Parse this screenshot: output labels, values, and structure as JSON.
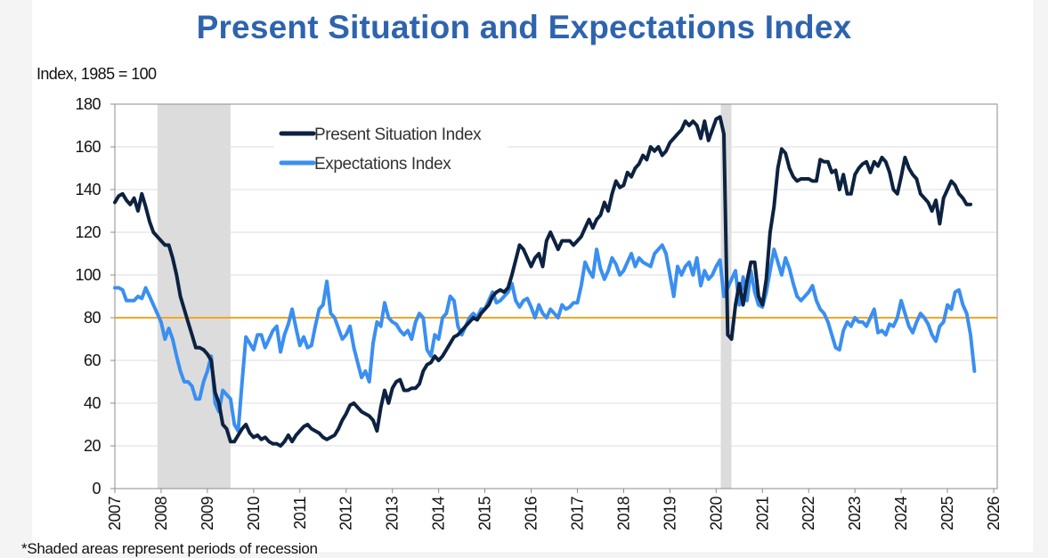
{
  "chart_data": {
    "type": "line",
    "title": "Present Situation and Expectations Index",
    "ylabel": "Index, 1985 = 100",
    "xlabel": "",
    "footnote": "*Shaded areas represent periods of recession",
    "xlim": [
      2007,
      2026
    ],
    "ylim": [
      0,
      180
    ],
    "x_ticks": [
      "2007",
      "2008",
      "2009",
      "2010",
      "2011",
      "2012",
      "2013",
      "2014",
      "2015",
      "2016",
      "2017",
      "2018",
      "2019",
      "2020",
      "2021",
      "2022",
      "2023",
      "2024",
      "2025",
      "2026"
    ],
    "y_ticks": [
      "0",
      "20",
      "40",
      "60",
      "80",
      "100",
      "120",
      "140",
      "160",
      "180"
    ],
    "grid": "horizontal",
    "legend_position": "top-left",
    "start": "2007-01",
    "frequency": "monthly",
    "reference_line": {
      "value": 80,
      "color": "#f5a623"
    },
    "recessions": [
      {
        "start": 2007.92,
        "end": 2009.5
      },
      {
        "start": 2020.1,
        "end": 2020.33
      }
    ],
    "series": [
      {
        "name": "Present Situation Index",
        "color": "#0d2240",
        "values": [
          134,
          137,
          138,
          135,
          133,
          136,
          130,
          138,
          132,
          125,
          120,
          118,
          116,
          114,
          114,
          108,
          100,
          90,
          84,
          78,
          72,
          66,
          66,
          65,
          63,
          60,
          45,
          40,
          30,
          28,
          22,
          22,
          25,
          28,
          30,
          26,
          24,
          25,
          23,
          24,
          22,
          21,
          21,
          20,
          22,
          25,
          22,
          25,
          27,
          29,
          30,
          28,
          27,
          26,
          24,
          23,
          24,
          25,
          28,
          32,
          35,
          39,
          40,
          38,
          36,
          35,
          34,
          32,
          27,
          38,
          46,
          40,
          47,
          50,
          51,
          46,
          46,
          47,
          47,
          49,
          55,
          58,
          59,
          62,
          60,
          62,
          65,
          68,
          71,
          72,
          74,
          76,
          78,
          80,
          79,
          82,
          84,
          86,
          90,
          92,
          93,
          92,
          94,
          100,
          107,
          114,
          112,
          108,
          104,
          108,
          110,
          104,
          116,
          120,
          116,
          112,
          116,
          116,
          116,
          114,
          116,
          118,
          122,
          126,
          122,
          126,
          128,
          134,
          130,
          138,
          144,
          141,
          142,
          148,
          146,
          150,
          152,
          156,
          154,
          160,
          158,
          160,
          156,
          158,
          162,
          164,
          166,
          168,
          172,
          170,
          172,
          170,
          164,
          172,
          163,
          168,
          173,
          174,
          166,
          72,
          70,
          86,
          96,
          86,
          97,
          106,
          106,
          90,
          86,
          98,
          120,
          132,
          150,
          159,
          157,
          150,
          146,
          144,
          145,
          145,
          145,
          144,
          144,
          154,
          153,
          153,
          148,
          149,
          140,
          147,
          138,
          138,
          147,
          150,
          152,
          153,
          148,
          153,
          151,
          155,
          153,
          148,
          140,
          138,
          146,
          155,
          150,
          147,
          145,
          138,
          136,
          134,
          130,
          135,
          124,
          136,
          140,
          144,
          142,
          138,
          136,
          133,
          133
        ]
      },
      {
        "name": "Expectations Index",
        "color": "#3a8ff0",
        "values": [
          94,
          94,
          93,
          88,
          88,
          88,
          90,
          89,
          94,
          90,
          86,
          82,
          78,
          70,
          75,
          70,
          62,
          55,
          50,
          50,
          48,
          42,
          42,
          50,
          55,
          62,
          40,
          36,
          46,
          44,
          42,
          30,
          27,
          50,
          71,
          68,
          65,
          72,
          72,
          66,
          70,
          74,
          76,
          64,
          72,
          77,
          84,
          75,
          67,
          71,
          66,
          67,
          76,
          84,
          86,
          97,
          82,
          80,
          75,
          70,
          72,
          76,
          66,
          59,
          52,
          55,
          50,
          68,
          78,
          76,
          87,
          80,
          78,
          77,
          74,
          72,
          74,
          70,
          78,
          82,
          80,
          65,
          62,
          72,
          70,
          80,
          82,
          90,
          88,
          76,
          72,
          76,
          80,
          82,
          80,
          84,
          84,
          88,
          92,
          87,
          88,
          90,
          92,
          96,
          88,
          85,
          88,
          89,
          85,
          80,
          86,
          82,
          80,
          84,
          82,
          80,
          86,
          84,
          85,
          87,
          87,
          95,
          106,
          102,
          99,
          112,
          103,
          98,
          102,
          108,
          105,
          100,
          102,
          106,
          110,
          104,
          108,
          106,
          105,
          104,
          110,
          112,
          114,
          110,
          100,
          90,
          104,
          100,
          104,
          106,
          100,
          108,
          95,
          102,
          98,
          100,
          104,
          107,
          90,
          94,
          98,
          102,
          86,
          99,
          88,
          102,
          92,
          86,
          85,
          92,
          102,
          112,
          106,
          100,
          108,
          103,
          96,
          90,
          88,
          90,
          92,
          95,
          88,
          84,
          82,
          78,
          72,
          66,
          65,
          74,
          78,
          76,
          80,
          78,
          78,
          76,
          80,
          84,
          73,
          74,
          72,
          77,
          76,
          80,
          88,
          82,
          76,
          73,
          78,
          82,
          80,
          77,
          72,
          69,
          76,
          78,
          86,
          84,
          92,
          93,
          86,
          82,
          72,
          55
        ]
      }
    ]
  }
}
